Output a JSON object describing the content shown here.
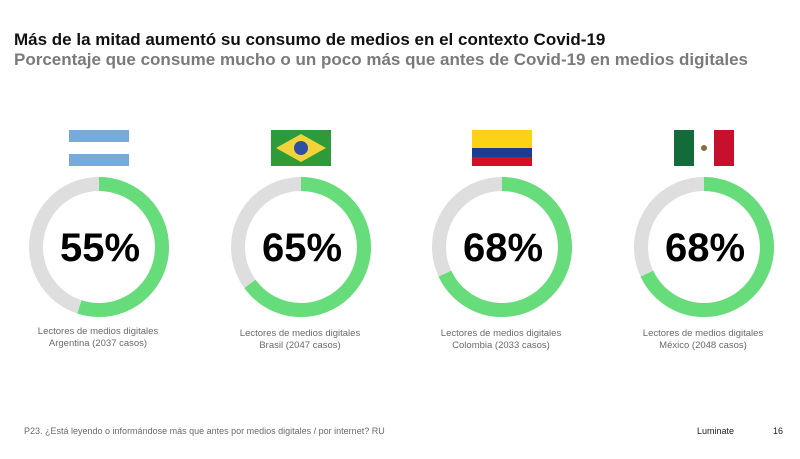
{
  "title": "Más de la mitad aumentó su consumo de medios en el contexto Covid-19",
  "subtitle": "Porcentaje que consume mucho o un poco más que antes de Covid-19 en medios digitales",
  "chart_data": {
    "type": "pie",
    "variant": "donut",
    "colors": {
      "filled": "#66dd7a",
      "remainder": "#dedede"
    },
    "series": [
      {
        "country": "Argentina",
        "value": 55,
        "label": "55%",
        "caption_line1": "Lectores de medios digitales",
        "caption_line2": "Argentina (2037 casos)"
      },
      {
        "country": "Brasil",
        "value": 65,
        "label": "65%",
        "caption_line1": "Lectores de medios digitales",
        "caption_line2": "Brasil (2047 casos)"
      },
      {
        "country": "Colombia",
        "value": 68,
        "label": "68%",
        "caption_line1": "Lectores de medios digitales",
        "caption_line2": "Colombia (2033 casos)"
      },
      {
        "country": "México",
        "value": 68,
        "label": "68%",
        "caption_line1": "Lectores de medios digitales",
        "caption_line2": "México (2048 casos)"
      }
    ]
  },
  "footnote": "P23. ¿Está leyendo o informándose más que antes por medios digitales / por internet? RU",
  "brand": "Luminate",
  "page_number": "16"
}
